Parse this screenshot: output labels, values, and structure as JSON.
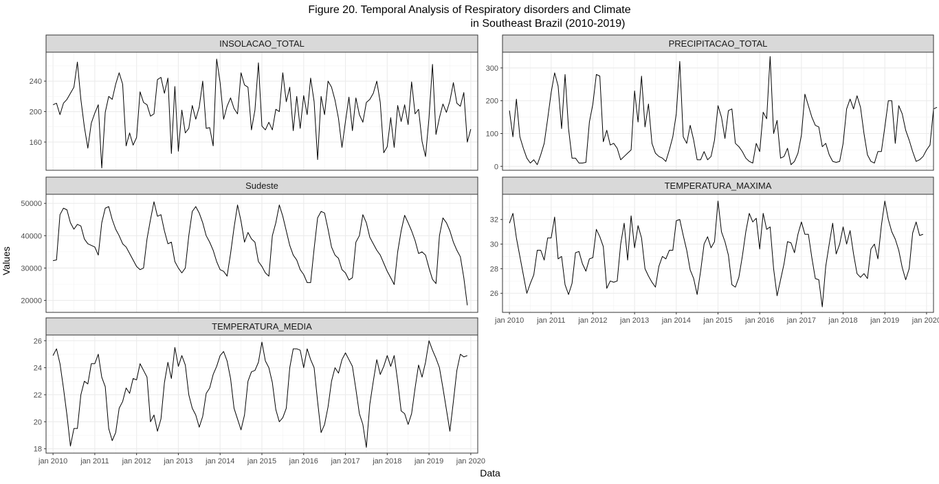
{
  "figure": {
    "title_line1": "Figure 20. Temporal Analysis of Respiratory disorders and Climate",
    "title_line2": "in Southeast Brazil (2010-2019)",
    "xlabel": "Data",
    "ylabel": "Values"
  },
  "chart_data": [
    {
      "type": "line",
      "title": "INSOLACAO_TOTAL",
      "x_start": "2010-01",
      "x_step": "month",
      "x_ticks": [
        "jan 2010",
        "jan 2011",
        "jan 2012",
        "jan 2013",
        "jan 2014",
        "jan 2015",
        "jan 2016",
        "jan 2017",
        "jan 2018",
        "jan 2019",
        "jan 2020"
      ],
      "xlim": [
        "2009-11",
        "2020-03"
      ],
      "y_ticks": [
        160,
        200,
        240
      ],
      "ylim": [
        123,
        278
      ],
      "grid": true,
      "series": [
        {
          "values": [
            209,
            211,
            196,
            211,
            216,
            224,
            232,
            265,
            216,
            180,
            152,
            185,
            198,
            209,
            126,
            199,
            220,
            216,
            236,
            251,
            236,
            155,
            172,
            156,
            166,
            226,
            212,
            209,
            194,
            197,
            242,
            245,
            224,
            244,
            145,
            233,
            148,
            202,
            172,
            178,
            208,
            190,
            206,
            240,
            178,
            179,
            155,
            269,
            238,
            190,
            207,
            218,
            204,
            197,
            251,
            235,
            232,
            176,
            202,
            264,
            181,
            176,
            186,
            176,
            203,
            200,
            251,
            213,
            232,
            175,
            220,
            178,
            221,
            196,
            244,
            213,
            137,
            220,
            196,
            240,
            232,
            215,
            191,
            153,
            187,
            219,
            175,
            218,
            196,
            186,
            212,
            216,
            224,
            240,
            212,
            146,
            154,
            192,
            153,
            208,
            187,
            209,
            183,
            239,
            197,
            203,
            161,
            141,
            192,
            262,
            170,
            192,
            210,
            199,
            214,
            238,
            211,
            207,
            225,
            160,
            177
          ]
        }
      ]
    },
    {
      "type": "line",
      "title": "PRECIPITACAO_TOTAL",
      "x_start": "2010-01",
      "x_step": "month",
      "x_ticks": [
        "jan 2010",
        "jan 2011",
        "jan 2012",
        "jan 2013",
        "jan 2014",
        "jan 2015",
        "jan 2016",
        "jan 2017",
        "jan 2018",
        "jan 2019",
        "jan 2020"
      ],
      "xlim": [
        "2009-11",
        "2020-03"
      ],
      "y_ticks": [
        0,
        100,
        200,
        300
      ],
      "ylim": [
        -12,
        348
      ],
      "grid": true,
      "series": [
        {
          "values": [
            170,
            90,
            205,
            90,
            55,
            25,
            10,
            20,
            5,
            35,
            70,
            145,
            225,
            285,
            245,
            115,
            280,
            115,
            25,
            25,
            10,
            10,
            12,
            135,
            190,
            280,
            275,
            75,
            110,
            65,
            70,
            55,
            20,
            30,
            40,
            50,
            230,
            135,
            275,
            120,
            190,
            70,
            40,
            30,
            25,
            15,
            50,
            90,
            160,
            320,
            90,
            70,
            125,
            80,
            20,
            20,
            45,
            20,
            30,
            80,
            185,
            150,
            85,
            170,
            175,
            70,
            60,
            45,
            25,
            15,
            10,
            70,
            45,
            165,
            145,
            335,
            100,
            140,
            25,
            30,
            55,
            5,
            15,
            40,
            95,
            220,
            185,
            150,
            125,
            120,
            60,
            70,
            35,
            15,
            12,
            15,
            70,
            175,
            205,
            175,
            215,
            180,
            100,
            35,
            15,
            10,
            45,
            45,
            120,
            200,
            200,
            70,
            185,
            160,
            110,
            80,
            45,
            15,
            20,
            30,
            50,
            65,
            175,
            180
          ]
        }
      ]
    },
    {
      "type": "line",
      "title": "Sudeste",
      "x_start": "2010-01",
      "x_step": "month",
      "x_ticks": [
        "jan 2010",
        "jan 2011",
        "jan 2012",
        "jan 2013",
        "jan 2014",
        "jan 2015",
        "jan 2016",
        "jan 2017",
        "jan 2018",
        "jan 2019",
        "jan 2020"
      ],
      "xlim": [
        "2009-11",
        "2020-03"
      ],
      "y_ticks": [
        20000,
        30000,
        40000,
        50000
      ],
      "ylim": [
        16300,
        52800
      ],
      "grid": true,
      "series": [
        {
          "values": [
            32300,
            32500,
            46500,
            48500,
            48000,
            44000,
            42000,
            43500,
            43000,
            39000,
            37500,
            37000,
            36500,
            34000,
            44000,
            48500,
            49000,
            45000,
            42000,
            40000,
            37500,
            36500,
            34500,
            32500,
            30500,
            29500,
            30000,
            39000,
            45000,
            50500,
            46000,
            46500,
            41500,
            37500,
            38000,
            32000,
            30000,
            28500,
            30000,
            40000,
            47500,
            49000,
            47000,
            44000,
            40000,
            38000,
            35500,
            32000,
            29500,
            29000,
            27500,
            34500,
            42500,
            49500,
            44500,
            38000,
            41000,
            39000,
            38000,
            32000,
            30500,
            28500,
            27500,
            40000,
            44000,
            49500,
            46000,
            41500,
            37000,
            34000,
            32500,
            29500,
            28000,
            25500,
            25500,
            36000,
            45500,
            47500,
            47000,
            42000,
            36500,
            34000,
            33000,
            29500,
            28500,
            26300,
            27000,
            38000,
            40000,
            46500,
            44000,
            39500,
            37500,
            35500,
            34000,
            31500,
            29000,
            27000,
            24900,
            35000,
            41500,
            46300,
            44000,
            41500,
            38500,
            34500,
            35000,
            34000,
            30000,
            26500,
            25200,
            40000,
            45500,
            44000,
            41500,
            38000,
            35500,
            33500,
            27000,
            18500
          ]
        }
      ]
    },
    {
      "type": "line",
      "title": "TEMPERATURA_MAXIMA",
      "x_start": "2010-01",
      "x_step": "month",
      "x_ticks": [
        "jan 2010",
        "jan 2011",
        "jan 2012",
        "jan 2013",
        "jan 2014",
        "jan 2015",
        "jan 2016",
        "jan 2017",
        "jan 2018",
        "jan 2019",
        "jan 2020"
      ],
      "xlim": [
        "2009-11",
        "2020-03"
      ],
      "y_ticks": [
        26,
        28,
        30,
        32
      ],
      "ylim": [
        24.45,
        34.05
      ],
      "grid": true,
      "series": [
        {
          "values": [
            31.7,
            32.5,
            30.5,
            29.0,
            27.5,
            26.0,
            26.8,
            27.5,
            29.5,
            29.5,
            28.7,
            30.5,
            30.5,
            32.2,
            28.8,
            29.0,
            26.7,
            25.9,
            26.8,
            29.3,
            29.4,
            28.4,
            27.8,
            28.8,
            28.9,
            31.2,
            30.6,
            29.8,
            26.4,
            27.0,
            26.9,
            27.0,
            30.0,
            31.7,
            28.7,
            32.3,
            29.7,
            31.5,
            30.5,
            28.0,
            27.4,
            26.9,
            26.5,
            28.2,
            29.0,
            28.8,
            29.5,
            29.5,
            31.9,
            32.0,
            30.7,
            29.5,
            27.9,
            27.2,
            25.9,
            27.8,
            30.0,
            30.6,
            29.7,
            30.2,
            33.5,
            31.0,
            30.2,
            29.1,
            26.7,
            26.5,
            27.3,
            29.0,
            31.0,
            32.5,
            31.8,
            32.1,
            29.6,
            32.5,
            31.2,
            31.4,
            28.0,
            25.8,
            27.1,
            28.4,
            30.2,
            30.1,
            29.3,
            30.8,
            31.8,
            30.8,
            30.8,
            28.9,
            27.2,
            27.1,
            24.9,
            28.2,
            30.0,
            31.7,
            29.2,
            30.0,
            31.4,
            30.0,
            31.1,
            29.2,
            27.6,
            27.3,
            27.6,
            27.2,
            29.6,
            30.0,
            28.8,
            31.5,
            33.5,
            32.0,
            31.0,
            30.4,
            29.5,
            28.1,
            27.1,
            28.0,
            30.9,
            31.8,
            30.7,
            30.8
          ]
        }
      ]
    },
    {
      "type": "line",
      "title": "TEMPERATURA_MEDIA",
      "x_start": "2010-01",
      "x_step": "month",
      "x_ticks": [
        "jan 2010",
        "jan 2011",
        "jan 2012",
        "jan 2013",
        "jan 2014",
        "jan 2015",
        "jan 2016",
        "jan 2017",
        "jan 2018",
        "jan 2019",
        "jan 2020"
      ],
      "xlim": [
        "2009-11",
        "2020-03"
      ],
      "y_ticks": [
        18,
        20,
        22,
        24,
        26
      ],
      "ylim": [
        17.68,
        26.42
      ],
      "grid": true,
      "series": [
        {
          "values": [
            24.9,
            25.4,
            24.3,
            22.5,
            20.5,
            18.2,
            19.5,
            19.5,
            22.0,
            23.0,
            22.8,
            24.3,
            24.3,
            25.0,
            23.3,
            22.6,
            19.5,
            18.6,
            19.2,
            21.0,
            21.5,
            22.5,
            22.1,
            23.2,
            23.1,
            24.3,
            23.8,
            23.3,
            20.0,
            20.5,
            19.3,
            20.2,
            22.9,
            24.4,
            23.2,
            25.5,
            24.1,
            24.9,
            24.2,
            22.0,
            21.0,
            20.5,
            19.6,
            20.4,
            22.1,
            22.5,
            23.5,
            24.1,
            24.9,
            25.2,
            24.5,
            23.2,
            21.0,
            20.2,
            19.4,
            20.5,
            23.0,
            23.7,
            23.8,
            24.4,
            25.9,
            24.5,
            24.0,
            22.9,
            20.9,
            20.0,
            20.3,
            21.0,
            24.0,
            25.4,
            25.4,
            25.3,
            24.0,
            25.4,
            24.6,
            24.0,
            21.5,
            19.2,
            19.8,
            21.1,
            23.0,
            24.0,
            23.6,
            24.6,
            25.1,
            24.6,
            24.1,
            22.4,
            20.6,
            19.8,
            18.1,
            21.3,
            23.0,
            24.6,
            23.5,
            24.1,
            24.9,
            24.1,
            24.9,
            23.0,
            20.8,
            20.6,
            19.8,
            20.6,
            22.5,
            24.2,
            23.3,
            24.4,
            26.0,
            25.3,
            24.7,
            24.0,
            22.5,
            20.9,
            19.3,
            21.5,
            23.8,
            25.0,
            24.8,
            24.9
          ]
        }
      ]
    }
  ]
}
